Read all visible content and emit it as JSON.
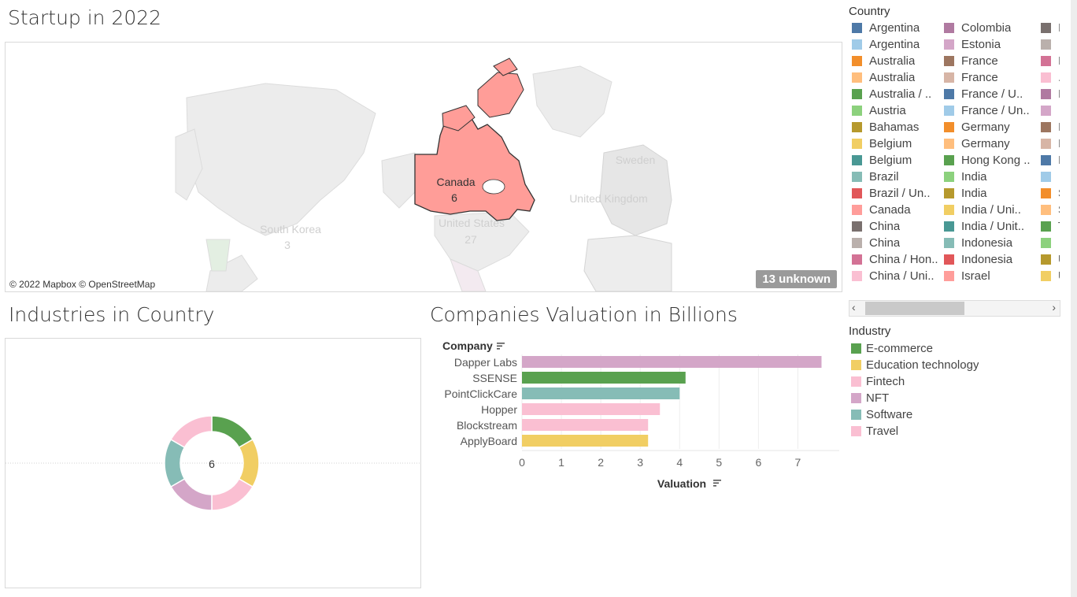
{
  "dashboard_title": "Startup in 2022",
  "map": {
    "attribution": "© 2022 Mapbox © OpenStreetMap",
    "unknown_badge": "13 unknown",
    "selected_label": "Canada",
    "selected_count": "6",
    "bg_labels": [
      {
        "key": "us",
        "text": "United States"
      },
      {
        "key": "us_count",
        "text": "27"
      },
      {
        "key": "uk",
        "text": "United Kingdom"
      },
      {
        "key": "sweden",
        "text": "Sweden"
      },
      {
        "key": "skorea",
        "text": "South Korea"
      },
      {
        "key": "skorea_count",
        "text": "3"
      }
    ],
    "highlight_color": "#ff9d98"
  },
  "country_legend": {
    "title": "Country",
    "columns": [
      [
        {
          "label": "Argentina",
          "color": "#4e79a7"
        },
        {
          "label": "Argentina",
          "color": "#a0cbe8"
        },
        {
          "label": "Australia",
          "color": "#f28e2b"
        },
        {
          "label": "Australia",
          "color": "#ffbe7d"
        },
        {
          "label": "Australia / ..",
          "color": "#59a14f"
        },
        {
          "label": "Austria",
          "color": "#8cd17d"
        },
        {
          "label": "Bahamas",
          "color": "#b6992d"
        },
        {
          "label": "Belgium",
          "color": "#f1ce63"
        },
        {
          "label": "Belgium",
          "color": "#499894"
        },
        {
          "label": "Brazil",
          "color": "#86bcb6"
        },
        {
          "label": "Brazil /  Un..",
          "color": "#e15759"
        },
        {
          "label": "Canada",
          "color": "#ff9d9a"
        },
        {
          "label": "China",
          "color": "#79706e"
        },
        {
          "label": "China",
          "color": "#bab0ac"
        },
        {
          "label": "China / Hon..",
          "color": "#d37295"
        },
        {
          "label": "China / Uni..",
          "color": "#fabfd2"
        }
      ],
      [
        {
          "label": "Colombia",
          "color": "#b07aa1"
        },
        {
          "label": "Estonia",
          "color": "#d4a6c8"
        },
        {
          "label": "France",
          "color": "#9d7660"
        },
        {
          "label": "France",
          "color": "#d7b5a6"
        },
        {
          "label": "France /  U..",
          "color": "#4e79a7"
        },
        {
          "label": "France / Un..",
          "color": "#a0cbe8"
        },
        {
          "label": "Germany",
          "color": "#f28e2b"
        },
        {
          "label": "Germany",
          "color": "#ffbe7d"
        },
        {
          "label": "Hong Kong ..",
          "color": "#59a14f"
        },
        {
          "label": "India",
          "color": "#8cd17d"
        },
        {
          "label": "India",
          "color": "#b6992d"
        },
        {
          "label": "India /  Uni..",
          "color": "#f1ce63"
        },
        {
          "label": "India / Unit..",
          "color": "#499894"
        },
        {
          "label": "Indonesia",
          "color": "#86bcb6"
        },
        {
          "label": "Indonesia",
          "color": "#e15759"
        },
        {
          "label": "Israel",
          "color": "#ff9d9a"
        }
      ],
      [
        {
          "label": "I",
          "color": "#79706e"
        },
        {
          "label": "",
          "color": "#bab0ac"
        },
        {
          "label": "I",
          "color": "#d37295"
        },
        {
          "label": ".",
          "color": "#fabfd2"
        },
        {
          "label": "I",
          "color": "#b07aa1"
        },
        {
          "label": "",
          "color": "#d4a6c8"
        },
        {
          "label": "I",
          "color": "#9d7660"
        },
        {
          "label": "I",
          "color": "#d7b5a6"
        },
        {
          "label": "I",
          "color": "#4e79a7"
        },
        {
          "label": "",
          "color": "#a0cbe8"
        },
        {
          "label": "S",
          "color": "#f28e2b"
        },
        {
          "label": "S",
          "color": "#ffbe7d"
        },
        {
          "label": "T",
          "color": "#59a14f"
        },
        {
          "label": "",
          "color": "#8cd17d"
        },
        {
          "label": "U",
          "color": "#b6992d"
        },
        {
          "label": "U",
          "color": "#f1ce63"
        }
      ]
    ]
  },
  "industry_legend": {
    "title": "Industry",
    "items": [
      {
        "label": "E-commerce",
        "color": "#59a14f"
      },
      {
        "label": "Education technology",
        "color": "#f1ce63"
      },
      {
        "label": "Fintech",
        "color": "#fabfd2"
      },
      {
        "label": "NFT",
        "color": "#d4a6c8"
      },
      {
        "label": "Software",
        "color": "#86bcb6"
      },
      {
        "label": "Travel",
        "color": "#fabfd2"
      }
    ]
  },
  "donut": {
    "title": "Industries in Country",
    "center_label": "6"
  },
  "bar": {
    "title": "Companies Valuation in Billions",
    "y_header": "Company",
    "x_header": "Valuation"
  },
  "chart_data": [
    {
      "type": "pie",
      "categories": [
        "E-commerce",
        "Education technology",
        "Fintech",
        "NFT",
        "Software",
        "Travel"
      ],
      "values": [
        1,
        1,
        1,
        1,
        1,
        1
      ],
      "colors": [
        "#59a14f",
        "#f1ce63",
        "#fabfd2",
        "#d4a6c8",
        "#86bcb6",
        "#fabfd2"
      ],
      "title": "Industries in Country"
    },
    {
      "type": "bar",
      "orientation": "horizontal",
      "categories": [
        "Dapper Labs",
        "SSENSE",
        "PointClickCare",
        "Hopper",
        "Blockstream",
        "ApplyBoard"
      ],
      "values": [
        7.6,
        4.15,
        4.0,
        3.5,
        3.2,
        3.2
      ],
      "colors": [
        "#d4a6c8",
        "#59a14f",
        "#86bcb6",
        "#fabfd2",
        "#fabfd2",
        "#f1ce63"
      ],
      "title": "Companies Valuation in Billions",
      "xlabel": "Valuation",
      "ylabel": "Company",
      "xticks": [
        "0",
        "1",
        "2",
        "3",
        "4",
        "5",
        "6",
        "7"
      ],
      "xlim": [
        0,
        7.75
      ],
      "grid": true
    }
  ]
}
